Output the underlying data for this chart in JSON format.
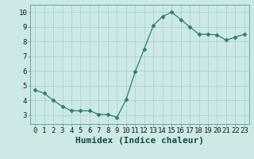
{
  "x": [
    0,
    1,
    2,
    3,
    4,
    5,
    6,
    7,
    8,
    9,
    10,
    11,
    12,
    13,
    14,
    15,
    16,
    17,
    18,
    19,
    20,
    21,
    22,
    23
  ],
  "y": [
    4.7,
    4.5,
    4.0,
    3.6,
    3.3,
    3.3,
    3.3,
    3.05,
    3.05,
    2.85,
    4.05,
    5.95,
    7.5,
    9.1,
    9.7,
    10.0,
    9.5,
    9.0,
    8.5,
    8.5,
    8.45,
    8.1,
    8.3,
    8.5
  ],
  "line_color": "#2e7d6e",
  "marker": "D",
  "marker_size": 2.5,
  "bg_color": "#cce9e7",
  "grid_color": "#aed4d0",
  "xlabel": "Humidex (Indice chaleur)",
  "xlabel_fontsize": 8,
  "tick_fontsize": 6.5,
  "ylim": [
    2.4,
    10.5
  ],
  "xlim": [
    -0.5,
    23.5
  ],
  "yticks": [
    3,
    4,
    5,
    6,
    7,
    8,
    9,
    10
  ],
  "xticks": [
    0,
    1,
    2,
    3,
    4,
    5,
    6,
    7,
    8,
    9,
    10,
    11,
    12,
    13,
    14,
    15,
    16,
    17,
    18,
    19,
    20,
    21,
    22,
    23
  ]
}
